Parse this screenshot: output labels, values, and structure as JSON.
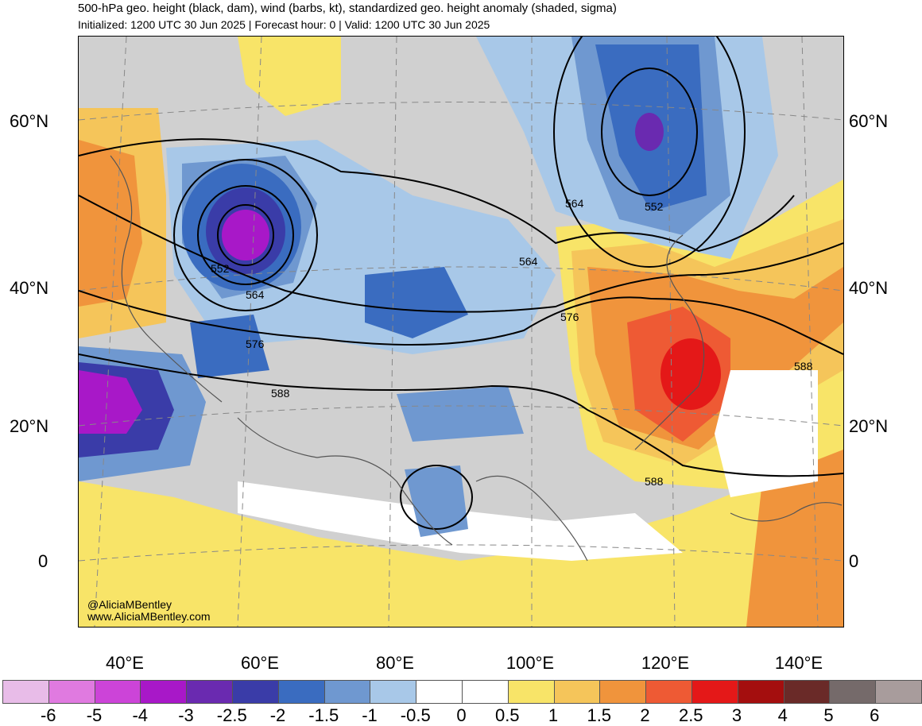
{
  "header": {
    "title": "500-hPa geo. height (black, dam), wind (barbs, kt), standardized geo. height anomaly (shaded, sigma)",
    "subtitle": "Initialized: 1200 UTC 30 Jun 2025 | Forecast hour: 0 | Valid: 1200 UTC 30 Jun 2025"
  },
  "map": {
    "lat_labels": [
      "60°N",
      "40°N",
      "20°N",
      "0"
    ],
    "lon_labels": [
      "40°E",
      "60°E",
      "80°E",
      "100°E",
      "120°E",
      "140°E"
    ],
    "contour_labels": [
      "552",
      "564",
      "576",
      "588",
      "552",
      "564",
      "564",
      "576",
      "588",
      "588"
    ],
    "watermark_handle": "@AliciaMBentley",
    "watermark_site": "www.AliciaMBentley.com"
  },
  "colorbar": {
    "ticks": [
      "-6",
      "-5",
      "-4",
      "-3",
      "-2.5",
      "-2",
      "-1.5",
      "-1",
      "-0.5",
      "0",
      "0.5",
      "1",
      "1.5",
      "2",
      "2.5",
      "3",
      "4",
      "5",
      "6"
    ],
    "colors": [
      "#e8bce8",
      "#e07ae0",
      "#cc44d8",
      "#a818c8",
      "#6a2ab0",
      "#3a3ca8",
      "#3a6cc0",
      "#6f98d0",
      "#a8c8e8",
      "#ffffff",
      "#ffffff",
      "#f8e468",
      "#f5c55a",
      "#f0943c",
      "#ee5a34",
      "#e41818",
      "#a40e0e",
      "#6a2a28",
      "#756a6a",
      "#a89c9c"
    ]
  }
}
